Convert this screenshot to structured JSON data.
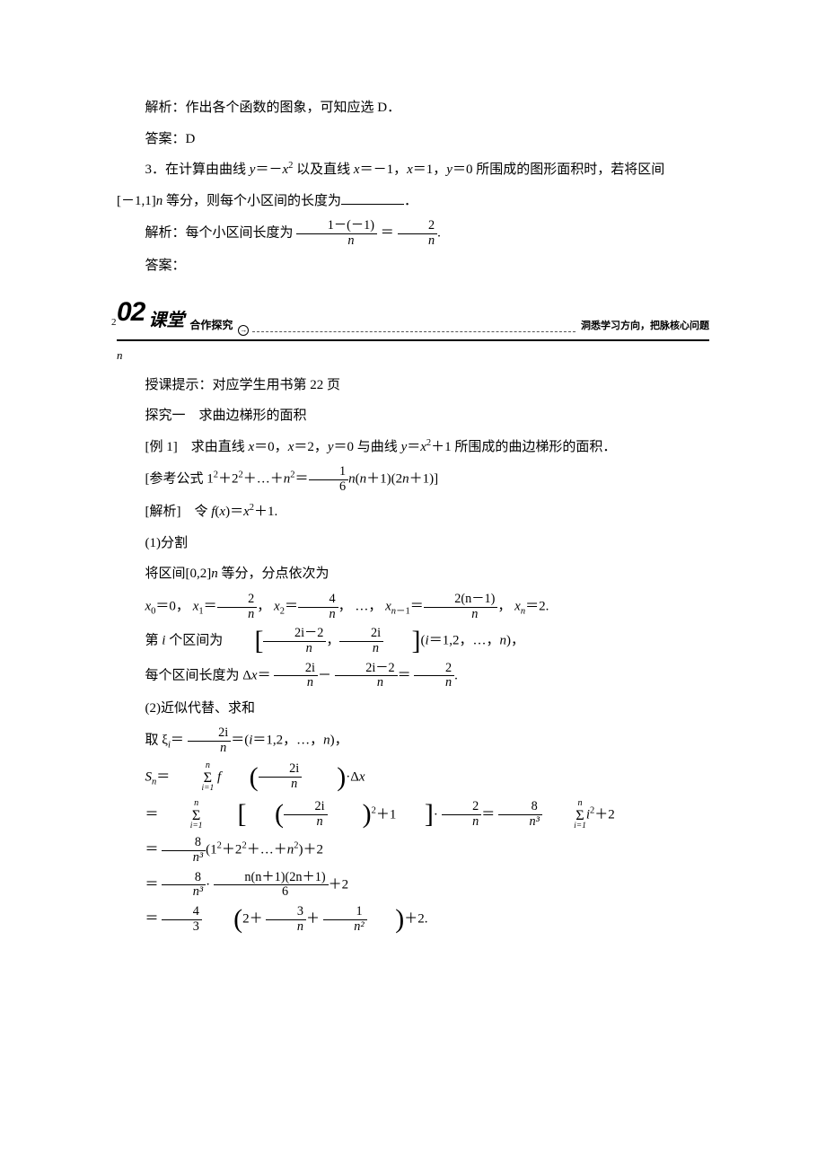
{
  "p1": "解析：作出各个函数的图象，可知应选 D．",
  "p2": "答案：D",
  "q3_a": "3．在计算由曲线 ",
  "q3_b": "＝－",
  "q3_c": " 以及直线 ",
  "q3_d": "＝－1，",
  "q3_e": "＝1，",
  "q3_f": "＝0 所围成的图形面积时，若将区间",
  "q3_g": "[－1,1]",
  "q3_h": " 等分，则每个小区间的长度为",
  "q3_end": "．",
  "p4_a": "解析：每个小区间长度为",
  "frac1_num": "1－(－1)",
  "frac1_den": "n",
  "eq": "＝",
  "frac2_num": "2",
  "frac2_den": "n",
  "period": ".",
  "p5": "答案：",
  "banner_left2": "2",
  "banner_num": "02",
  "banner_title": "课堂",
  "banner_sub": "合作探究",
  "banner_right": "洞悉学习方向，把脉核心问题",
  "banner_below": "n",
  "p6": "授课提示：对应学生用书第 22 页",
  "p7": "探究一　求曲边梯形的面积",
  "ex1_a": "[例 1]　求由直线 ",
  "ex1_b": "＝0，",
  "ex1_c": "＝2，",
  "ex1_d": "＝0 与曲线 ",
  "ex1_e": "＝",
  "ex1_f": "＋1 所围成的曲边梯形的面积．",
  "ref_a": "[参考公式 1",
  "ref_b": "＋2",
  "ref_c": "＋…＋",
  "ref_d": "＝",
  "ref_frac_num": "1",
  "ref_frac_den": "6",
  "ref_e": "(",
  "ref_f": "＋1)(2",
  "ref_g": "＋1)]",
  "sol_a": "[解析]　令 ",
  "sol_b": "(",
  "sol_c": ")＝",
  "sol_d": "＋1.",
  "s1": "(1)分割",
  "s2_a": "将区间[0,2]",
  "s2_b": " 等分，分点依次为",
  "pts_a": "＝0， ",
  "pts_b": "＝",
  "pts_c": "， ",
  "pts_d": "＝",
  "pts_e": "， …， ",
  "pts_f": "＝",
  "pts_g": "， ",
  "pts_h": "＝2.",
  "pf2": "2",
  "pf4": "4",
  "pf2n1": "2(n－1)",
  "int_a": "第 ",
  "int_b": " 个区间为",
  "int_c": "(",
  "int_d": "＝1,2，…，",
  "int_e": ")，",
  "if_2im2": "2i－2",
  "if_2i": "2i",
  "len_a": "每个区间长度为 Δ",
  "len_b": "＝",
  "len_c": "－",
  "len_d": "＝",
  "s3": "(2)近似代替、求和",
  "xi_a": "取 ξ",
  "xi_b": "＝",
  "xi_c": "＝(",
  "xi_d": "＝1,2，…，",
  "xi_e": ")，",
  "sn_a": "＝",
  "sn_b": "·Δ",
  "l2_a": "＝",
  "l2_b": "＋1",
  "l2_c": "·",
  "l2_d": "＝",
  "l2_e": "＋2",
  "pf8": "8",
  "pfn3": "n³",
  "l3_a": "＝",
  "l3_b": "(1",
  "l3_c": "＋2",
  "l3_d": "＋…＋",
  "l3_e": ")＋2",
  "l4_a": "＝",
  "l4_b": "·",
  "l4_num": "n(n＋1)(2n＋1)",
  "l4_den": "6",
  "l4_c": "＋2",
  "l5_a": "＝",
  "l5_num4": "4",
  "l5_den3": "3",
  "l5_b": "2＋",
  "l5_n3": "3",
  "l5_dn": "n",
  "l5_c": "＋",
  "l5_n1": "1",
  "l5_dn2": "n²",
  "l5_d": "＋2.",
  "var_y": "y",
  "var_x": "x",
  "var_n": "n",
  "var_i": "i",
  "var_f": "f",
  "var_S": "S"
}
